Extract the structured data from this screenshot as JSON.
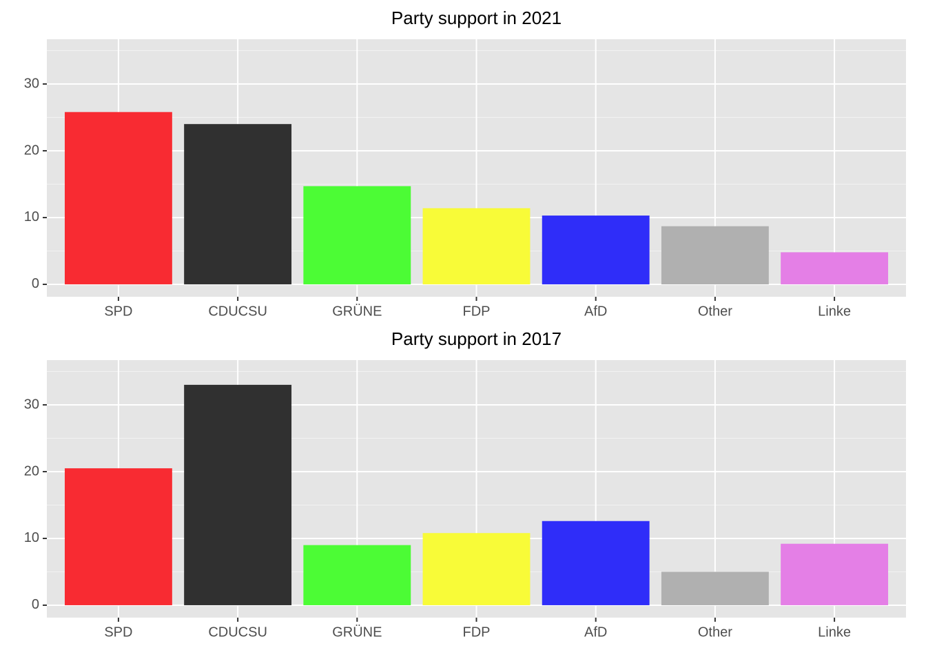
{
  "chart_data": [
    {
      "type": "bar",
      "title": "Party support in 2021",
      "categories": [
        "SPD",
        "CDUCSU",
        "GRÜNE",
        "FDP",
        "AfD",
        "Other",
        "Linke"
      ],
      "values": [
        25.8,
        24.0,
        14.7,
        11.4,
        10.3,
        8.7,
        4.8
      ],
      "colors": [
        "#f82b32",
        "#303030",
        "#4cfc35",
        "#f8fb38",
        "#2f2df9",
        "#b0b0b0",
        "#e47fe6"
      ],
      "ylim": [
        -1.86,
        36.7
      ],
      "yticks": [
        0,
        10,
        20,
        30
      ],
      "y_minor_ticks": [
        5,
        15,
        25,
        35
      ],
      "grid": true
    },
    {
      "type": "bar",
      "title": "Party support in 2017",
      "categories": [
        "SPD",
        "CDUCSU",
        "GRÜNE",
        "FDP",
        "AfD",
        "Other",
        "Linke"
      ],
      "values": [
        20.5,
        33.0,
        9.0,
        10.8,
        12.6,
        5.0,
        9.2
      ],
      "colors": [
        "#f82b32",
        "#303030",
        "#4cfc35",
        "#f8fb38",
        "#2f2df9",
        "#b0b0b0",
        "#e47fe6"
      ],
      "ylim": [
        -1.86,
        36.7
      ],
      "yticks": [
        0,
        10,
        20,
        30
      ],
      "y_minor_ticks": [
        5,
        15,
        25,
        35
      ],
      "grid": true
    }
  ]
}
